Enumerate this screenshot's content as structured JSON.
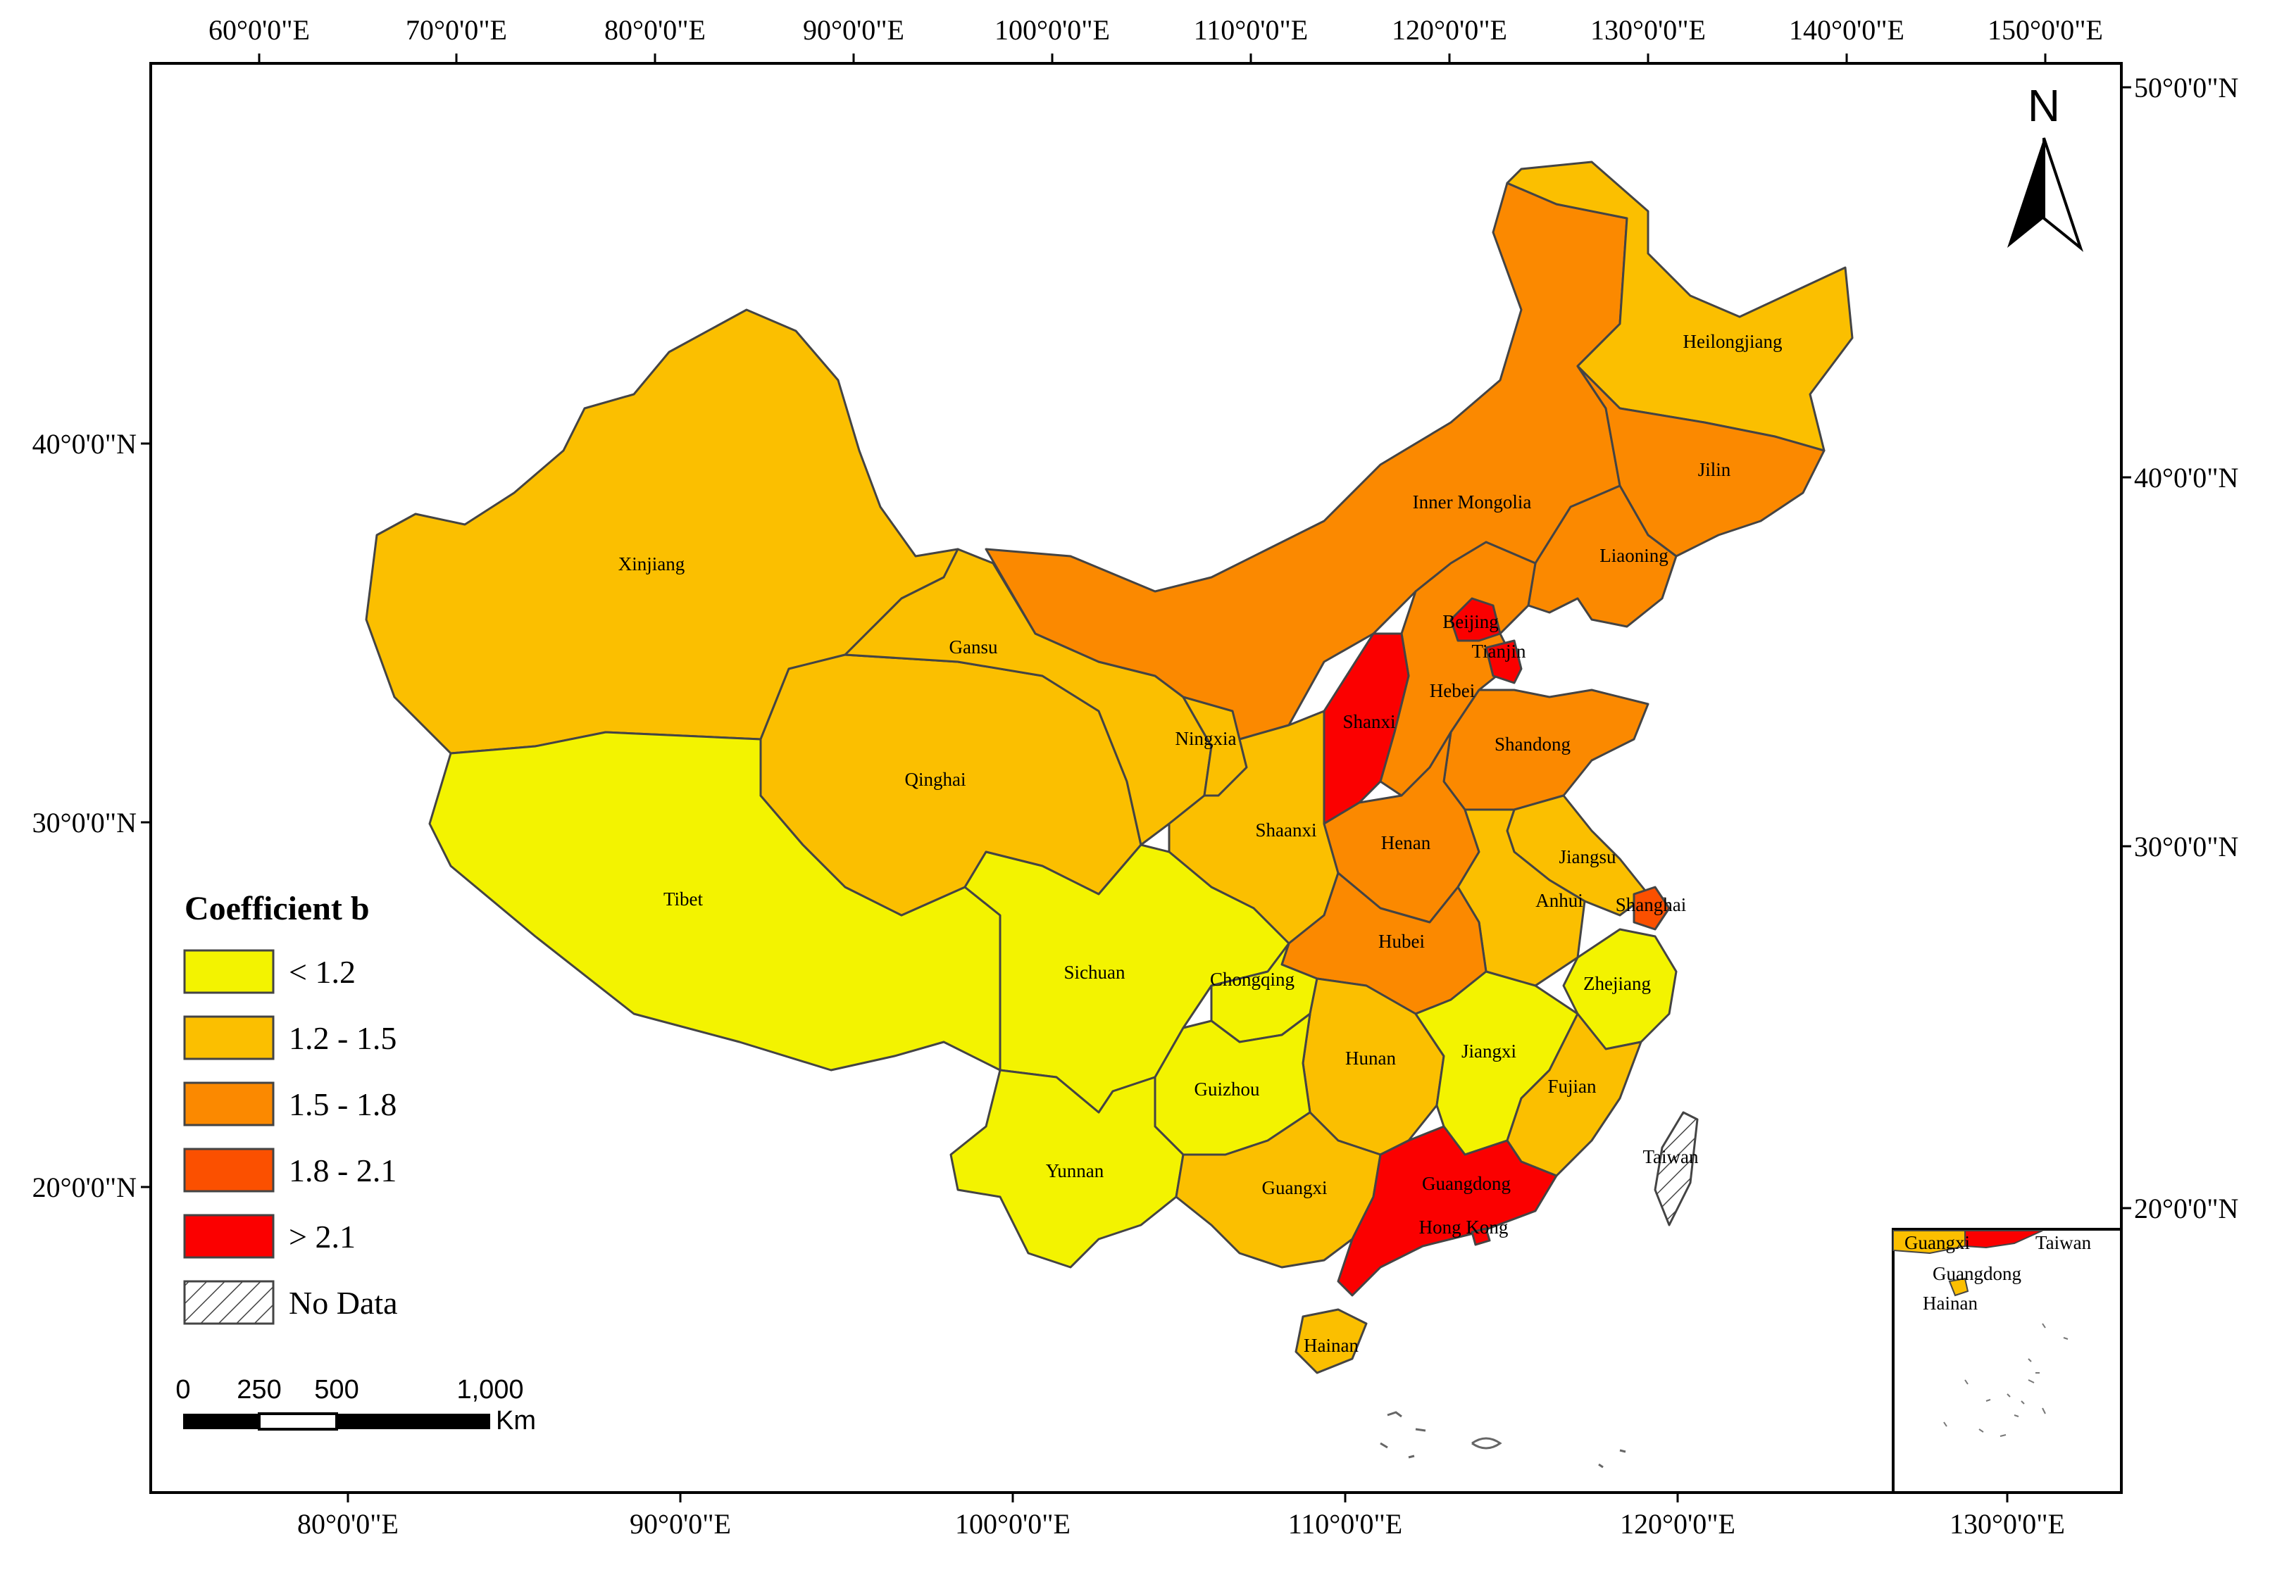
{
  "colors": {
    "lt_1_2": "#f3f300",
    "r_1_2_1_5": "#fbbf00",
    "r_1_5_1_8": "#fb8900",
    "r_1_8_2_1": "#fb5000",
    "gt_2_1": "#fb0000",
    "no_data": "#ffffff"
  },
  "axes": {
    "top_ticks": [
      "60°0'0\"E",
      "70°0'0\"E",
      "80°0'0\"E",
      "90°0'0\"E",
      "100°0'0\"E",
      "110°0'0\"E",
      "120°0'0\"E",
      "130°0'0\"E",
      "140°0'0\"E",
      "150°0'0\"E"
    ],
    "bottom_ticks": [
      "80°0'0\"E",
      "90°0'0\"E",
      "100°0'0\"E",
      "110°0'0\"E",
      "120°0'0\"E",
      "130°0'0\"E"
    ],
    "left_ticks": [
      "40°0'0\"N",
      "30°0'0\"N",
      "20°0'0\"N"
    ],
    "right_ticks": [
      "50°0'0\"N",
      "40°0'0\"N",
      "30°0'0\"N",
      "20°0'0\"N"
    ]
  },
  "north": {
    "label": "N"
  },
  "legend": {
    "title": "Coefficient b",
    "items": [
      {
        "label": "< 1.2",
        "color_key": "lt_1_2"
      },
      {
        "label": "1.2 - 1.5",
        "color_key": "r_1_2_1_5"
      },
      {
        "label": "1.5 - 1.8",
        "color_key": "r_1_5_1_8"
      },
      {
        "label": "1.8 - 2.1",
        "color_key": "r_1_8_2_1"
      },
      {
        "label": "> 2.1",
        "color_key": "gt_2_1"
      },
      {
        "label": "No Data",
        "color_key": "no_data"
      }
    ]
  },
  "scale": {
    "ticks": [
      "0",
      "250",
      "500",
      "1,000"
    ],
    "unit": "Km"
  },
  "provinces": {
    "xinjiang": {
      "name": "Xinjiang",
      "class": "1.2 - 1.5"
    },
    "tibet": {
      "name": "Tibet",
      "class": "< 1.2"
    },
    "qinghai": {
      "name": "Qinghai",
      "class": "1.2 - 1.5"
    },
    "gansu": {
      "name": "Gansu",
      "class": "1.2 - 1.5"
    },
    "inner_mongolia": {
      "name": "Inner Mongolia",
      "class": "1.5 - 1.8"
    },
    "heilongjiang": {
      "name": "Heilongjiang",
      "class": "1.2 - 1.5"
    },
    "jilin": {
      "name": "Jilin",
      "class": "1.5 - 1.8"
    },
    "liaoning": {
      "name": "Liaoning",
      "class": "1.5 - 1.8"
    },
    "beijing": {
      "name": "Beijing",
      "class": "> 2.1"
    },
    "tianjin": {
      "name": "Tianjin",
      "class": "> 2.1"
    },
    "hebei": {
      "name": "Hebei",
      "class": "1.5 - 1.8"
    },
    "shanxi": {
      "name": "Shanxi",
      "class": "> 2.1"
    },
    "shandong": {
      "name": "Shandong",
      "class": "1.5 - 1.8"
    },
    "ningxia": {
      "name": "Ningxia",
      "class": "1.2 - 1.5"
    },
    "shaanxi": {
      "name": "Shaanxi",
      "class": "1.2 - 1.5"
    },
    "henan": {
      "name": "Henan",
      "class": "1.5 - 1.8"
    },
    "jiangsu": {
      "name": "Jiangsu",
      "class": "1.2 - 1.5"
    },
    "anhui": {
      "name": "Anhui",
      "class": "1.2 - 1.5"
    },
    "shanghai": {
      "name": "Shanghai",
      "class": "1.8 - 2.1"
    },
    "hubei": {
      "name": "Hubei",
      "class": "1.5 - 1.8"
    },
    "sichuan": {
      "name": "Sichuan",
      "class": "< 1.2"
    },
    "chongqing": {
      "name": "Chongqing",
      "class": "< 1.2"
    },
    "zhejiang": {
      "name": "Zhejiang",
      "class": "< 1.2"
    },
    "hunan": {
      "name": "Hunan",
      "class": "1.2 - 1.5"
    },
    "jiangxi": {
      "name": "Jiangxi",
      "class": "< 1.2"
    },
    "fujian": {
      "name": "Fujian",
      "class": "1.2 - 1.5"
    },
    "guizhou": {
      "name": "Guizhou",
      "class": "< 1.2"
    },
    "yunnan": {
      "name": "Yunnan",
      "class": "< 1.2"
    },
    "guangxi": {
      "name": "Guangxi",
      "class": "1.2 - 1.5"
    },
    "guangdong": {
      "name": "Guangdong",
      "class": "> 2.1"
    },
    "hong_kong": {
      "name": "Hong Kong",
      "class": "> 2.1"
    },
    "hainan": {
      "name": "Hainan",
      "class": "1.2 - 1.5"
    },
    "taiwan": {
      "name": "Taiwan",
      "class": "No Data"
    }
  },
  "inset": {
    "labels": {
      "guangxi": "Guangxi",
      "taiwan": "Taiwan",
      "guangdong": "Guangdong",
      "hainan": "Hainan"
    }
  }
}
